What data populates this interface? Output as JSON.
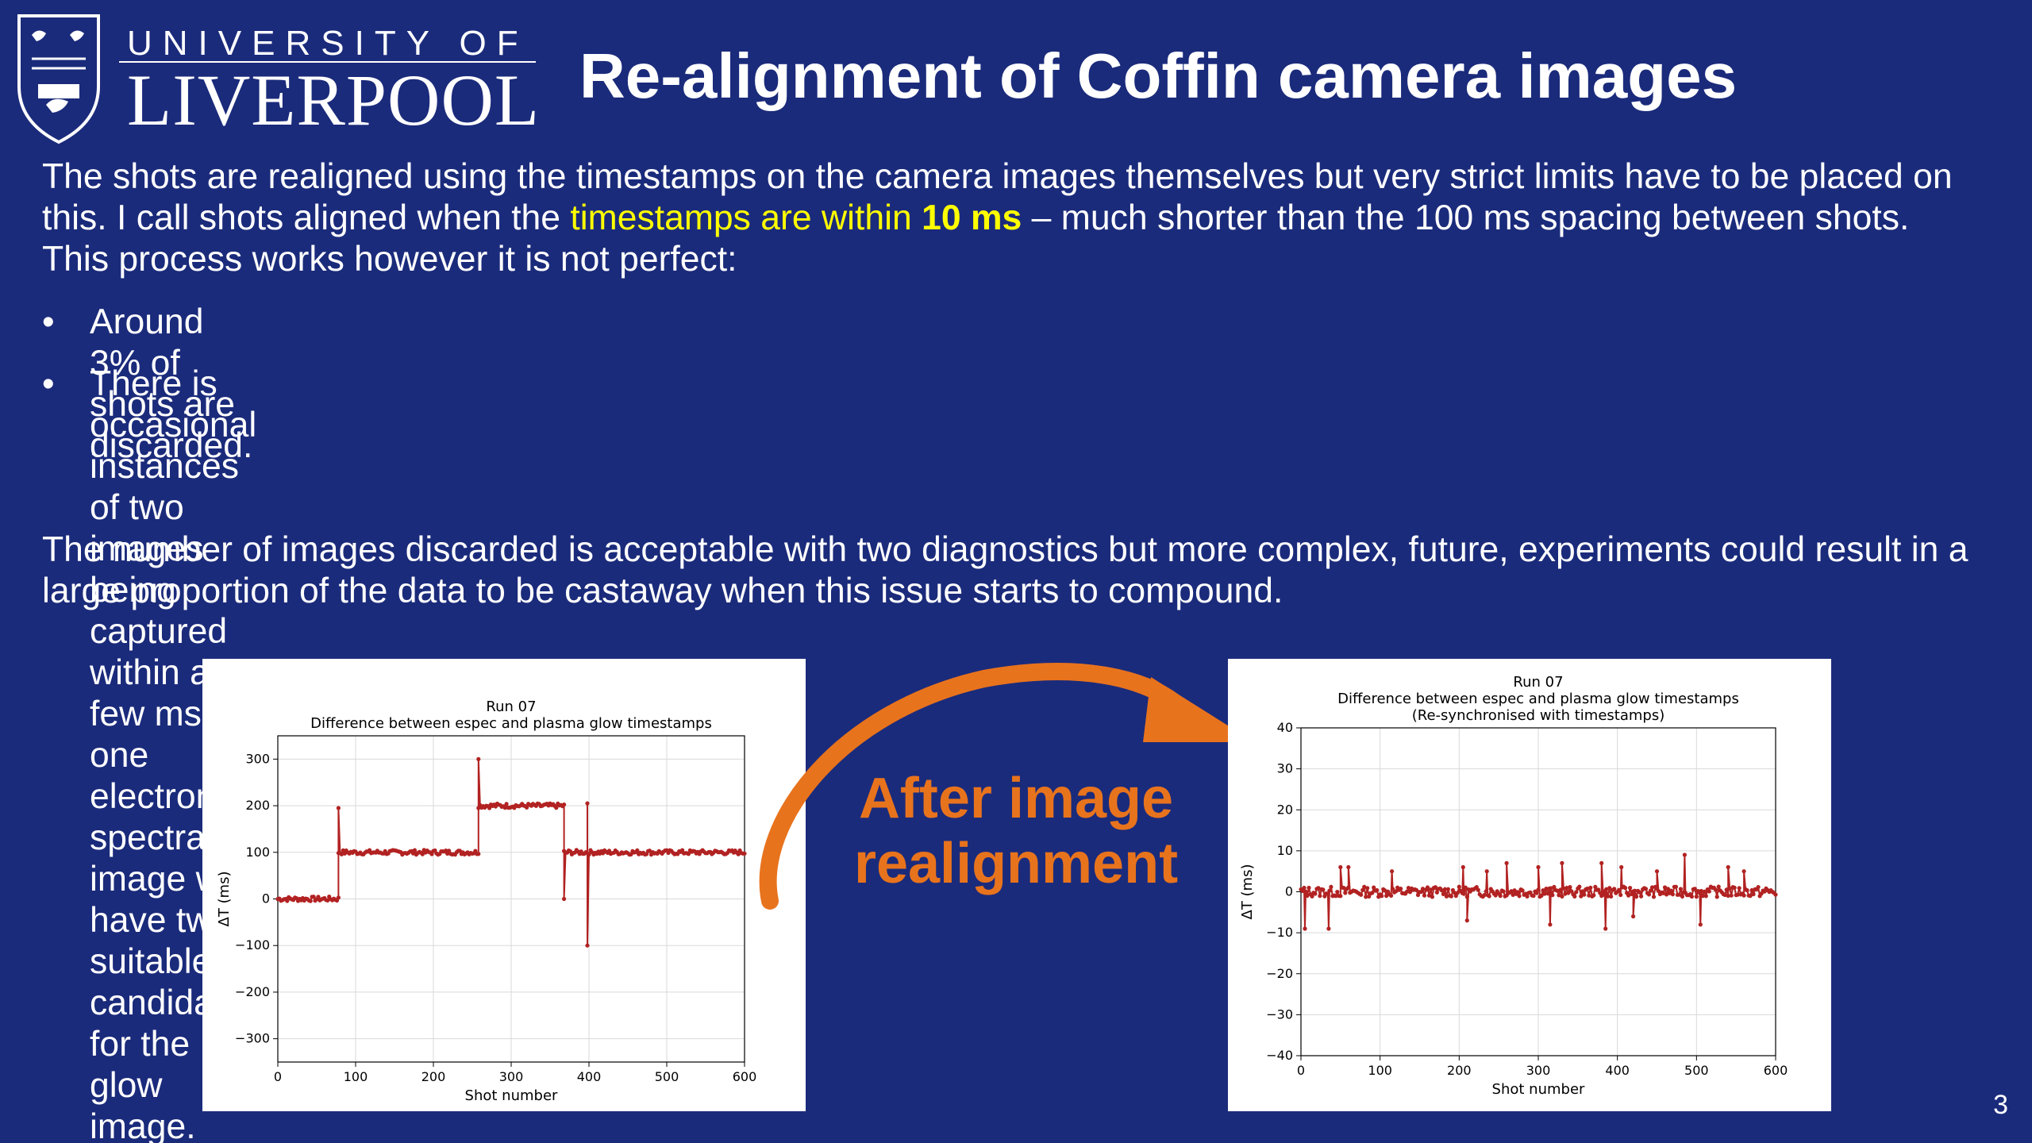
{
  "logo": {
    "top": "UNIVERSITY OF",
    "bottom": "LIVERPOOL"
  },
  "title": "Re-alignment of Coffin camera images",
  "intro": {
    "part1": "The shots are realigned using the timestamps on the camera images themselves but very strict limits have to be placed on this. I call shots aligned when the ",
    "highlight": "timestamps are within ",
    "highlight_bold": "10 ms",
    "part2": " – much shorter than the 100 ms spacing between shots. This process works however it is not perfect:"
  },
  "bullets": [
    "Around 3% of shots are discarded.",
    "There is occasional instances of two images being captured within a few ms – one electron spectra image will\nhave two suitable candidates for the glow image."
  ],
  "closing": "The number of images discarded is acceptable with two diagnostics but more complex, future, experiments could result in a large proportion of the data to be castaway when this issue starts to compound.",
  "callout": "After image realignment",
  "page_number": "3",
  "colors": {
    "background": "#1b2b7b",
    "highlight": "#ffff00",
    "accent": "#e8731d",
    "series": "#b22222"
  },
  "chart_data": [
    {
      "type": "line",
      "title": "Run 07",
      "subtitle": "Difference between espec and plasma glow timestamps",
      "xlabel": "Shot number",
      "ylabel": "ΔT (ms)",
      "xlim": [
        0,
        600
      ],
      "ylim": [
        -350,
        350
      ],
      "xticks": [
        "0",
        "100",
        "200",
        "300",
        "400",
        "500",
        "600"
      ],
      "yticks": [
        "−300",
        "−200",
        "−100",
        "0",
        "100",
        "200",
        "300"
      ],
      "ytick_values": [
        -300,
        -200,
        -100,
        0,
        100,
        200,
        300
      ],
      "grid": true,
      "segments": [
        {
          "x_start": 0,
          "x_end": 78,
          "value": 0
        },
        {
          "x_start": 78,
          "x_end": 258,
          "value": 100
        },
        {
          "x_start": 258,
          "x_end": 368,
          "value": 200
        },
        {
          "x_start": 368,
          "x_end": 600,
          "value": 100
        }
      ],
      "spikes": [
        {
          "x": 78,
          "y": 195
        },
        {
          "x": 258,
          "y": 300
        },
        {
          "x": 368,
          "y": 0
        },
        {
          "x": 398,
          "y": 205
        },
        {
          "x": 398,
          "y": -100
        }
      ]
    },
    {
      "type": "line",
      "title": "Run 07",
      "subtitle": "Difference between espec and plasma glow timestamps",
      "subtitle2": "(Re-synchronised with timestamps)",
      "xlabel": "Shot number",
      "ylabel": "ΔT (ms)",
      "xlim": [
        0,
        600
      ],
      "ylim": [
        -40,
        40
      ],
      "xticks": [
        "0",
        "100",
        "200",
        "300",
        "400",
        "500",
        "600"
      ],
      "yticks": [
        "−40",
        "−30",
        "−20",
        "−10",
        "0",
        "10",
        "20",
        "30",
        "40"
      ],
      "ytick_values": [
        -40,
        -30,
        -20,
        -10,
        0,
        10,
        20,
        30,
        40
      ],
      "grid": true,
      "baseline": 0,
      "spikes": [
        {
          "x": 5,
          "y": -9
        },
        {
          "x": 35,
          "y": -9
        },
        {
          "x": 50,
          "y": 6
        },
        {
          "x": 60,
          "y": 6
        },
        {
          "x": 115,
          "y": 5
        },
        {
          "x": 205,
          "y": 6
        },
        {
          "x": 210,
          "y": -7
        },
        {
          "x": 235,
          "y": 5
        },
        {
          "x": 260,
          "y": 7
        },
        {
          "x": 300,
          "y": 6
        },
        {
          "x": 315,
          "y": -8
        },
        {
          "x": 330,
          "y": 7
        },
        {
          "x": 380,
          "y": 7
        },
        {
          "x": 385,
          "y": -9
        },
        {
          "x": 405,
          "y": 6
        },
        {
          "x": 420,
          "y": -6
        },
        {
          "x": 450,
          "y": 5
        },
        {
          "x": 485,
          "y": 9
        },
        {
          "x": 505,
          "y": -8
        },
        {
          "x": 540,
          "y": 6
        },
        {
          "x": 560,
          "y": 5
        }
      ]
    }
  ]
}
